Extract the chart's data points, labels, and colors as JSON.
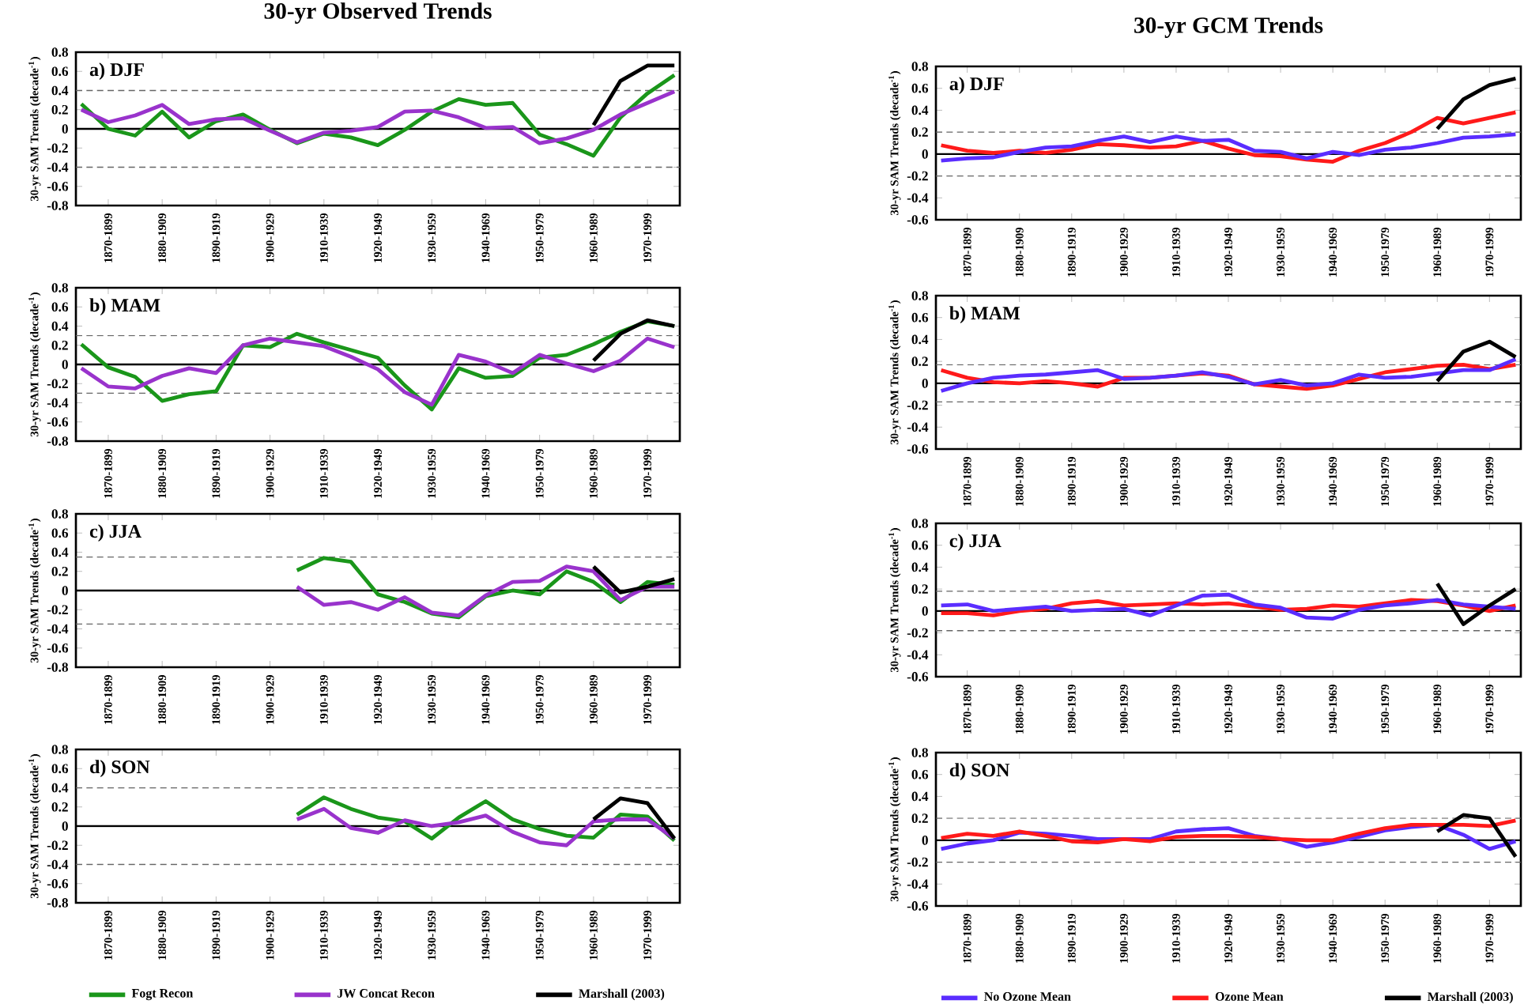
{
  "chart_data": [
    {
      "type": "line",
      "title": "30-yr Observed Trends",
      "ylabel": "30-yr SAM Trends (decade$^{-1}$)",
      "annotations": [
        "a) DJF"
      ],
      "ylim": [
        -0.8,
        0.8
      ],
      "yticks": [
        -0.8,
        -0.6,
        -0.4,
        -0.2,
        0,
        0.2,
        0.4,
        0.6,
        0.8
      ],
      "categories": [
        null,
        "1870-1899",
        null,
        "1880-1909",
        null,
        "1890-1919",
        null,
        "1900-1929",
        null,
        "1910-1939",
        null,
        "1920-1949",
        null,
        "1930-1959",
        null,
        "1940-1969",
        null,
        "1950-1979",
        null,
        "1960-1989",
        null,
        "1970-1999",
        null
      ],
      "ref_lines": [
        {
          "axis": "y",
          "value": 0,
          "line_style": "solid"
        },
        {
          "axis": "y",
          "value": 0.4,
          "line_style": "dashed"
        },
        {
          "axis": "y",
          "value": -0.4,
          "line_style": "dashed"
        }
      ],
      "series": [
        {
          "color": "#1a961a",
          "values": [
            0.26,
            0.0,
            -0.07,
            0.18,
            -0.09,
            0.08,
            0.15,
            -0.01,
            -0.15,
            -0.05,
            -0.09,
            -0.17,
            -0.01,
            0.18,
            0.31,
            0.25,
            0.27,
            -0.06,
            -0.16,
            -0.28,
            0.12,
            0.37,
            0.56
          ]
        },
        {
          "color": "#9933cc",
          "values": [
            0.2,
            0.07,
            0.14,
            0.25,
            0.05,
            0.1,
            0.11,
            -0.02,
            -0.14,
            -0.04,
            -0.02,
            0.02,
            0.18,
            0.19,
            0.12,
            0.01,
            0.02,
            -0.15,
            -0.1,
            -0.01,
            0.15,
            0.27,
            0.39
          ]
        },
        {
          "color": "#000000",
          "values": [
            null,
            null,
            null,
            null,
            null,
            null,
            null,
            null,
            null,
            null,
            null,
            null,
            null,
            null,
            null,
            null,
            null,
            null,
            null,
            0.04,
            0.5,
            0.66,
            0.66
          ]
        }
      ]
    },
    {
      "type": "line",
      "title": "30-yr GCM Trends",
      "ylabel": "30-yr SAM Trends (decade$^{-1}$)",
      "annotations": [
        "a) DJF"
      ],
      "ylim": [
        -0.6,
        0.8
      ],
      "yticks": [
        -0.6,
        -0.4,
        -0.2,
        0,
        0.2,
        0.4,
        0.6,
        0.8
      ],
      "categories": [
        null,
        "1870-1899",
        null,
        "1880-1909",
        null,
        "1890-1919",
        null,
        "1900-1929",
        null,
        "1910-1939",
        null,
        "1920-1949",
        null,
        "1930-1959",
        null,
        "1940-1969",
        null,
        "1950-1979",
        null,
        "1960-1989",
        null,
        "1970-1999",
        null
      ],
      "ref_lines": [
        {
          "axis": "y",
          "value": 0,
          "line_style": "solid"
        },
        {
          "axis": "y",
          "value": 0.2,
          "line_style": "dashed"
        },
        {
          "axis": "y",
          "value": -0.2,
          "line_style": "dashed"
        }
      ],
      "series": [
        {
          "color": "#ff1a1a",
          "values": [
            0.08,
            0.03,
            0.01,
            0.03,
            0.01,
            0.04,
            0.09,
            0.08,
            0.06,
            0.07,
            0.12,
            0.05,
            -0.01,
            -0.02,
            -0.05,
            -0.07,
            0.03,
            0.1,
            0.2,
            0.33,
            0.28,
            0.33,
            0.38
          ]
        },
        {
          "color": "#5a2dff",
          "values": [
            -0.06,
            -0.04,
            -0.03,
            0.02,
            0.06,
            0.07,
            0.12,
            0.16,
            0.11,
            0.16,
            0.12,
            0.13,
            0.03,
            0.02,
            -0.04,
            0.02,
            -0.01,
            0.04,
            0.06,
            0.1,
            0.15,
            0.16,
            0.18
          ]
        },
        {
          "color": "#000000",
          "values": [
            null,
            null,
            null,
            null,
            null,
            null,
            null,
            null,
            null,
            null,
            null,
            null,
            null,
            null,
            null,
            null,
            null,
            null,
            null,
            0.23,
            0.5,
            0.63,
            0.69
          ]
        }
      ]
    },
    {
      "type": "line",
      "ylabel": "30-yr SAM Trends (decade$^{-1}$)",
      "annotations": [
        "b) MAM"
      ],
      "ylim": [
        -0.8,
        0.8
      ],
      "yticks": [
        -0.8,
        -0.6,
        -0.4,
        -0.2,
        0,
        0.2,
        0.4,
        0.6,
        0.8
      ],
      "categories": [
        null,
        "1870-1899",
        null,
        "1880-1909",
        null,
        "1890-1919",
        null,
        "1900-1929",
        null,
        "1910-1939",
        null,
        "1920-1949",
        null,
        "1930-1959",
        null,
        "1940-1969",
        null,
        "1950-1979",
        null,
        "1960-1989",
        null,
        "1970-1999",
        null
      ],
      "ref_lines": [
        {
          "axis": "y",
          "value": 0,
          "line_style": "solid"
        },
        {
          "axis": "y",
          "value": 0.3,
          "line_style": "dashed"
        },
        {
          "axis": "y",
          "value": -0.3,
          "line_style": "dashed"
        }
      ],
      "series": [
        {
          "color": "#1a961a",
          "values": [
            0.21,
            -0.03,
            -0.13,
            -0.38,
            -0.31,
            -0.28,
            0.2,
            0.18,
            0.32,
            0.23,
            0.15,
            0.07,
            -0.22,
            -0.47,
            -0.04,
            -0.14,
            -0.12,
            0.07,
            0.1,
            0.21,
            0.34,
            0.45,
            0.4
          ]
        },
        {
          "color": "#9933cc",
          "values": [
            -0.04,
            -0.23,
            -0.25,
            -0.12,
            -0.04,
            -0.09,
            0.2,
            0.27,
            0.23,
            0.19,
            0.08,
            -0.05,
            -0.29,
            -0.42,
            0.1,
            0.03,
            -0.09,
            0.1,
            0.01,
            -0.07,
            0.04,
            0.27,
            0.18
          ]
        },
        {
          "color": "#000000",
          "values": [
            null,
            null,
            null,
            null,
            null,
            null,
            null,
            null,
            null,
            null,
            null,
            null,
            null,
            null,
            null,
            null,
            null,
            null,
            null,
            0.04,
            0.32,
            0.46,
            0.4
          ]
        }
      ]
    },
    {
      "type": "line",
      "ylabel": "30-yr SAM Trends (decade$^{-1}$)",
      "annotations": [
        "b) MAM"
      ],
      "ylim": [
        -0.6,
        0.8
      ],
      "yticks": [
        -0.6,
        -0.4,
        -0.2,
        0,
        0.2,
        0.4,
        0.6,
        0.8
      ],
      "categories": [
        null,
        "1870-1899",
        null,
        "1880-1909",
        null,
        "1890-1919",
        null,
        "1900-1929",
        null,
        "1910-1939",
        null,
        "1920-1949",
        null,
        "1930-1959",
        null,
        "1940-1969",
        null,
        "1950-1979",
        null,
        "1960-1989",
        null,
        "1970-1999",
        null
      ],
      "ref_lines": [
        {
          "axis": "y",
          "value": 0,
          "line_style": "solid"
        },
        {
          "axis": "y",
          "value": 0.17,
          "line_style": "dashed"
        },
        {
          "axis": "y",
          "value": -0.17,
          "line_style": "dashed"
        }
      ],
      "series": [
        {
          "color": "#ff1a1a",
          "values": [
            0.12,
            0.05,
            0.01,
            0,
            0.02,
            0,
            -0.03,
            0.05,
            0.05,
            0.07,
            0.09,
            0.07,
            -0.01,
            -0.03,
            -0.05,
            -0.02,
            0.04,
            0.1,
            0.13,
            0.16,
            0.17,
            0.13,
            0.17
          ]
        },
        {
          "color": "#5a2dff",
          "values": [
            -0.07,
            0,
            0.05,
            0.07,
            0.08,
            0.1,
            0.12,
            0.04,
            0.05,
            0.07,
            0.1,
            0.06,
            -0.01,
            0.03,
            -0.02,
            0,
            0.08,
            0.05,
            0.06,
            0.09,
            0.12,
            0.12,
            0.22
          ]
        },
        {
          "color": "#000000",
          "values": [
            null,
            null,
            null,
            null,
            null,
            null,
            null,
            null,
            null,
            null,
            null,
            null,
            null,
            null,
            null,
            null,
            null,
            null,
            null,
            0.02,
            0.29,
            0.38,
            0.24
          ]
        }
      ]
    },
    {
      "type": "line",
      "ylabel": "30-yr SAM Trends (decade$^{-1}$)",
      "annotations": [
        "c) JJA"
      ],
      "ylim": [
        -0.8,
        0.8
      ],
      "yticks": [
        -0.8,
        -0.6,
        -0.4,
        -0.2,
        0,
        0.2,
        0.4,
        0.6,
        0.8
      ],
      "categories": [
        null,
        "1870-1899",
        null,
        "1880-1909",
        null,
        "1890-1919",
        null,
        "1900-1929",
        null,
        "1910-1939",
        null,
        "1920-1949",
        null,
        "1930-1959",
        null,
        "1940-1969",
        null,
        "1950-1979",
        null,
        "1960-1989",
        null,
        "1970-1999",
        null
      ],
      "ref_lines": [
        {
          "axis": "y",
          "value": 0,
          "line_style": "solid"
        },
        {
          "axis": "y",
          "value": 0.35,
          "line_style": "dashed"
        },
        {
          "axis": "y",
          "value": -0.35,
          "line_style": "dashed"
        }
      ],
      "series": [
        {
          "color": "#1a961a",
          "values": [
            null,
            null,
            null,
            null,
            null,
            null,
            null,
            null,
            0.21,
            0.34,
            0.3,
            -0.04,
            -0.12,
            -0.24,
            -0.28,
            -0.06,
            0,
            -0.04,
            0.2,
            0.09,
            -0.12,
            0.09,
            0.06
          ]
        },
        {
          "color": "#9933cc",
          "values": [
            null,
            null,
            null,
            null,
            null,
            null,
            null,
            null,
            0.04,
            -0.15,
            -0.12,
            -0.2,
            -0.07,
            -0.23,
            -0.26,
            -0.05,
            0.09,
            0.1,
            0.25,
            0.2,
            -0.1,
            0.04,
            0.04
          ]
        },
        {
          "color": "#000000",
          "values": [
            null,
            null,
            null,
            null,
            null,
            null,
            null,
            null,
            null,
            null,
            null,
            null,
            null,
            null,
            null,
            null,
            null,
            null,
            null,
            0.25,
            -0.02,
            0.04,
            0.12
          ]
        }
      ]
    },
    {
      "type": "line",
      "ylabel": "30-yr SAM Trends (decade$^{-1}$)",
      "annotations": [
        "c) JJA"
      ],
      "ylim": [
        -0.6,
        0.8
      ],
      "yticks": [
        -0.6,
        -0.4,
        -0.2,
        0,
        0.2,
        0.4,
        0.6,
        0.8
      ],
      "categories": [
        null,
        "1870-1899",
        null,
        "1880-1909",
        null,
        "1890-1919",
        null,
        "1900-1929",
        null,
        "1910-1939",
        null,
        "1920-1949",
        null,
        "1930-1959",
        null,
        "1940-1969",
        null,
        "1950-1979",
        null,
        "1960-1989",
        null,
        "1970-1999",
        null
      ],
      "ref_lines": [
        {
          "axis": "y",
          "value": 0,
          "line_style": "solid"
        },
        {
          "axis": "y",
          "value": 0.18,
          "line_style": "dashed"
        },
        {
          "axis": "y",
          "value": -0.18,
          "line_style": "dashed"
        }
      ],
      "series": [
        {
          "color": "#ff1a1a",
          "values": [
            -0.02,
            -0.02,
            -0.04,
            0,
            0.02,
            0.07,
            0.09,
            0.05,
            0.06,
            0.07,
            0.06,
            0.07,
            0.04,
            0.01,
            0.02,
            0.05,
            0.04,
            0.07,
            0.1,
            0.09,
            0.05,
            0,
            0.05
          ]
        },
        {
          "color": "#5a2dff",
          "values": [
            0.05,
            0.06,
            0,
            0.02,
            0.04,
            0,
            0.01,
            0.02,
            -0.04,
            0.05,
            0.14,
            0.15,
            0.06,
            0.03,
            -0.06,
            -0.07,
            0.01,
            0.05,
            0.07,
            0.1,
            0.06,
            0.04,
            0.02
          ]
        },
        {
          "color": "#000000",
          "values": [
            null,
            null,
            null,
            null,
            null,
            null,
            null,
            null,
            null,
            null,
            null,
            null,
            null,
            null,
            null,
            null,
            null,
            null,
            null,
            0.25,
            -0.12,
            0.05,
            0.2
          ]
        }
      ]
    },
    {
      "type": "line",
      "ylabel": "30-yr SAM Trends (decade$^{-1}$)",
      "annotations": [
        "d) SON"
      ],
      "ylim": [
        -0.8,
        0.8
      ],
      "yticks": [
        -0.8,
        -0.6,
        -0.4,
        -0.2,
        0,
        0.2,
        0.4,
        0.6,
        0.8
      ],
      "legend": "bottom",
      "categories": [
        null,
        "1870-1899",
        null,
        "1880-1909",
        null,
        "1890-1919",
        null,
        "1900-1929",
        null,
        "1910-1939",
        null,
        "1920-1949",
        null,
        "1930-1959",
        null,
        "1940-1969",
        null,
        "1950-1979",
        null,
        "1960-1989",
        null,
        "1970-1999",
        null
      ],
      "ref_lines": [
        {
          "axis": "y",
          "value": 0,
          "line_style": "solid"
        },
        {
          "axis": "y",
          "value": 0.4,
          "line_style": "dashed"
        },
        {
          "axis": "y",
          "value": -0.4,
          "line_style": "dashed"
        }
      ],
      "series": [
        {
          "name": "Fogt Recon",
          "color": "#1a961a",
          "values": [
            null,
            null,
            null,
            null,
            null,
            null,
            null,
            null,
            0.12,
            0.3,
            0.18,
            0.09,
            0.05,
            -0.13,
            0.09,
            0.26,
            0.07,
            -0.03,
            -0.1,
            -0.12,
            0.12,
            0.1,
            -0.15
          ]
        },
        {
          "name": "JW Concat Recon",
          "color": "#9933cc",
          "values": [
            null,
            null,
            null,
            null,
            null,
            null,
            null,
            null,
            0.07,
            0.18,
            -0.02,
            -0.07,
            0.06,
            0,
            0.04,
            0.11,
            -0.06,
            -0.17,
            -0.2,
            0.05,
            0.07,
            0.07,
            -0.13
          ]
        },
        {
          "name": "Marshall (2003)",
          "color": "#000000",
          "values": [
            null,
            null,
            null,
            null,
            null,
            null,
            null,
            null,
            null,
            null,
            null,
            null,
            null,
            null,
            null,
            null,
            null,
            null,
            null,
            0.07,
            0.29,
            0.24,
            -0.13
          ]
        }
      ]
    },
    {
      "type": "line",
      "ylabel": "30-yr SAM Trends (decade$^{-1}$)",
      "annotations": [
        "d) SON"
      ],
      "ylim": [
        -0.6,
        0.8
      ],
      "yticks": [
        -0.6,
        -0.4,
        -0.2,
        0,
        0.2,
        0.4,
        0.6,
        0.8
      ],
      "legend": "bottom",
      "categories": [
        null,
        "1870-1899",
        null,
        "1880-1909",
        null,
        "1890-1919",
        null,
        "1900-1929",
        null,
        "1910-1939",
        null,
        "1920-1949",
        null,
        "1930-1959",
        null,
        "1940-1969",
        null,
        "1950-1979",
        null,
        "1960-1989",
        null,
        "1970-1999",
        null
      ],
      "ref_lines": [
        {
          "axis": "y",
          "value": 0,
          "line_style": "solid"
        },
        {
          "axis": "y",
          "value": 0.2,
          "line_style": "dashed"
        },
        {
          "axis": "y",
          "value": -0.2,
          "line_style": "dashed"
        }
      ],
      "series": [
        {
          "name": "No Ozone Mean",
          "color": "#5a2dff",
          "values": [
            -0.08,
            -0.03,
            0,
            0.07,
            0.06,
            0.04,
            0.01,
            0.01,
            0.01,
            0.08,
            0.1,
            0.11,
            0.04,
            0.01,
            -0.06,
            -0.02,
            0.03,
            0.09,
            0.12,
            0.14,
            0.05,
            -0.08,
            -0.01
          ]
        },
        {
          "name": "Ozone Mean",
          "color": "#ff1a1a",
          "values": [
            0.02,
            0.06,
            0.04,
            0.08,
            0.04,
            -0.01,
            -0.02,
            0.01,
            -0.01,
            0.03,
            0.04,
            0.04,
            0.03,
            0.01,
            0,
            0,
            0.06,
            0.11,
            0.14,
            0.14,
            0.14,
            0.13,
            0.18
          ]
        },
        {
          "name": "Marshall (2003)",
          "color": "#000000",
          "values": [
            null,
            null,
            null,
            null,
            null,
            null,
            null,
            null,
            null,
            null,
            null,
            null,
            null,
            null,
            null,
            null,
            null,
            null,
            null,
            0.08,
            0.23,
            0.2,
            -0.15
          ]
        }
      ]
    }
  ]
}
